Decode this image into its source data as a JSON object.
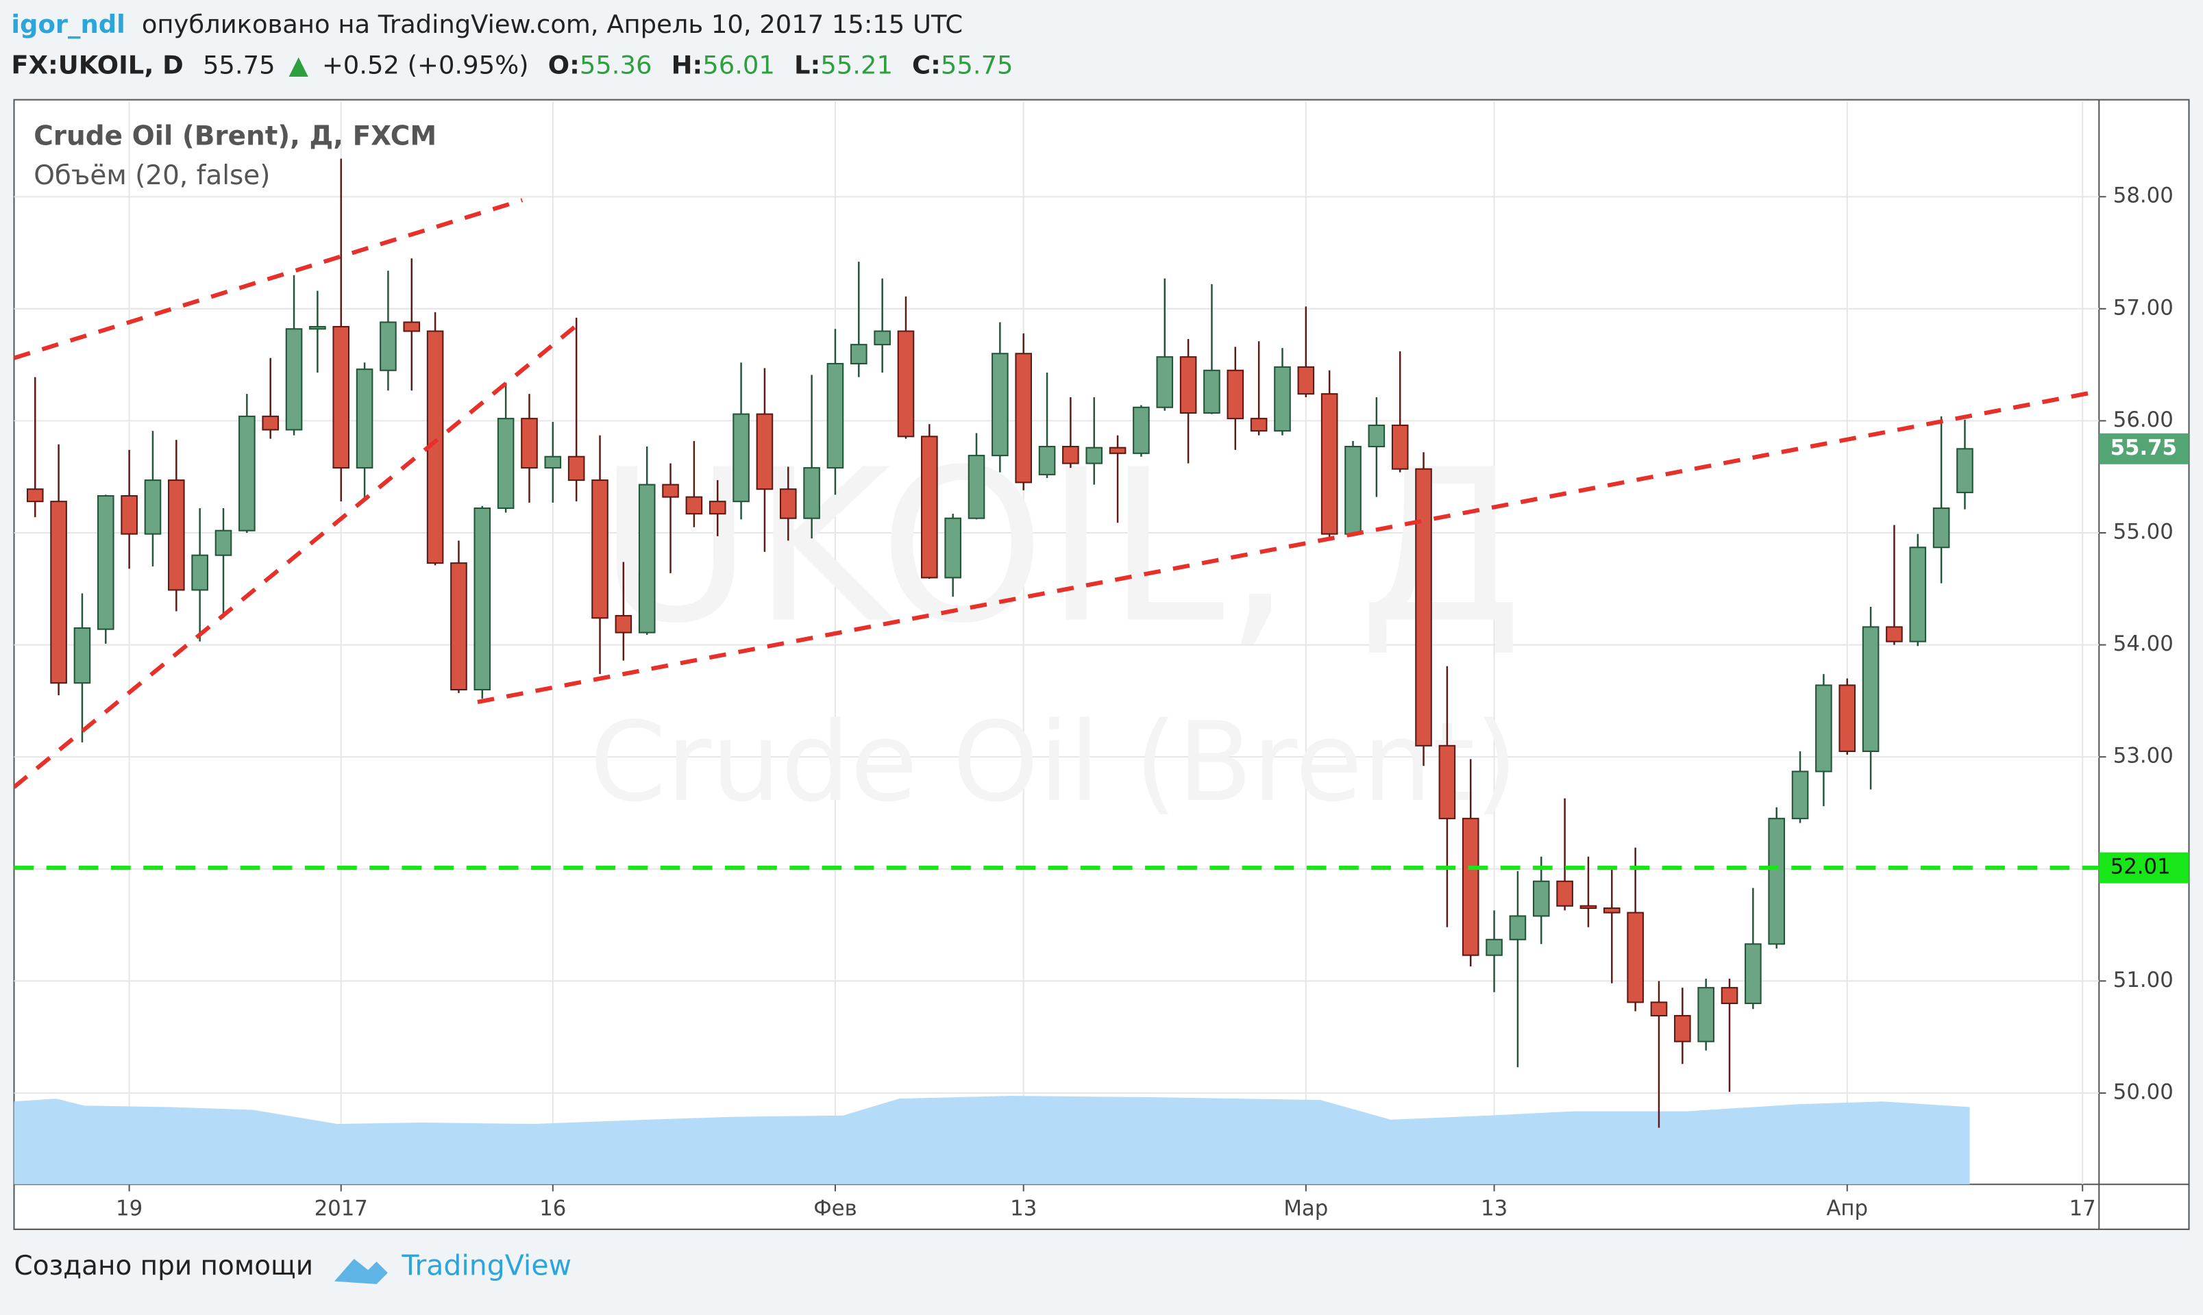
{
  "header": {
    "author": "igor_ndl",
    "published": "опубликовано на TradingView.com, Апрель 10, 2017 15:15 UTC"
  },
  "quote": {
    "symbol": "FX:UKOIL, D",
    "last": 55.75,
    "arrow": "▲",
    "change": "+0.52 (+0.95%)",
    "items": [
      {
        "label": "O:",
        "value": 55.36
      },
      {
        "label": "H:",
        "value": 56.01
      },
      {
        "label": "L:",
        "value": 55.21
      },
      {
        "label": "C:",
        "value": 55.75
      }
    ]
  },
  "chart_data": {
    "type": "candlestick",
    "legend": [
      "Crude Oil (Brent), Д, FXCM",
      "Объём (20, false)"
    ],
    "watermark": [
      "UKOIL, Д",
      "Crude Oil (Brent)"
    ],
    "up_color": "#6ba583",
    "down_color": "#d75442",
    "categories": [
      null,
      null,
      null,
      null,
      "19",
      null,
      null,
      null,
      null,
      null,
      null,
      null,
      null,
      "2017",
      null,
      null,
      null,
      null,
      null,
      null,
      null,
      null,
      "16",
      null,
      null,
      null,
      null,
      null,
      null,
      null,
      null,
      null,
      null,
      null,
      "Фев",
      null,
      null,
      null,
      null,
      null,
      null,
      null,
      "13",
      null,
      null,
      null,
      null,
      null,
      null,
      null,
      null,
      null,
      null,
      null,
      "Мар",
      null,
      null,
      null,
      null,
      null,
      null,
      null,
      "13",
      null,
      null,
      null,
      null,
      null,
      null,
      null,
      null,
      null,
      null,
      null,
      null,
      null,
      null,
      "Апр",
      null,
      null,
      null,
      null,
      null,
      null,
      null,
      null,
      null,
      "17"
    ],
    "open": [
      55.39,
      55.28,
      53.66,
      54.14,
      55.33,
      54.99,
      55.47,
      54.49,
      54.8,
      55.02,
      56.04,
      55.92,
      56.82,
      56.84,
      55.58,
      56.45,
      56.88,
      56.8,
      54.73,
      53.6,
      55.22,
      56.02,
      55.58,
      55.68,
      55.47,
      54.26,
      54.11,
      55.43,
      55.32,
      55.28,
      55.28,
      56.06,
      55.39,
      55.13,
      55.58,
      56.51,
      56.68,
      56.8,
      55.86,
      54.6,
      55.13,
      55.69,
      56.6,
      55.52,
      55.77,
      55.62,
      55.76,
      55.71,
      56.12,
      56.57,
      56.07,
      56.45,
      56.02,
      55.91,
      56.48,
      56.24,
      54.99,
      55.77,
      55.96,
      55.57,
      53.1,
      52.45,
      51.23,
      51.37,
      51.58,
      51.89,
      51.67,
      51.65,
      51.61,
      50.81,
      50.69,
      50.46,
      50.94,
      50.8,
      51.33,
      52.45,
      52.87,
      53.64,
      53.05,
      54.16,
      54.03,
      54.87,
      55.36,
      null,
      null,
      null,
      null,
      null
    ],
    "high": [
      56.39,
      55.79,
      54.46,
      55.34,
      55.74,
      55.91,
      55.83,
      55.22,
      55.22,
      56.24,
      56.56,
      57.3,
      57.16,
      58.34,
      56.52,
      57.34,
      57.45,
      56.97,
      54.93,
      55.24,
      56.34,
      56.24,
      55.99,
      56.92,
      55.87,
      54.74,
      55.77,
      55.62,
      55.82,
      55.47,
      56.52,
      56.47,
      55.59,
      56.41,
      56.82,
      57.42,
      57.27,
      57.11,
      55.97,
      55.17,
      55.89,
      56.88,
      56.78,
      56.43,
      56.21,
      56.21,
      55.87,
      56.14,
      57.27,
      56.73,
      57.22,
      56.66,
      56.71,
      56.65,
      57.02,
      56.45,
      55.82,
      56.21,
      56.62,
      55.72,
      53.81,
      52.98,
      51.63,
      51.98,
      52.11,
      52.63,
      52.11,
      52.01,
      52.19,
      51.0,
      50.94,
      51.02,
      51.02,
      51.83,
      52.55,
      53.05,
      53.74,
      53.7,
      54.34,
      55.07,
      54.99,
      56.04,
      56.01,
      null,
      null,
      null,
      null,
      null
    ],
    "low": [
      55.14,
      53.55,
      53.13,
      54.01,
      54.68,
      54.7,
      54.3,
      54.03,
      54.24,
      55.0,
      55.84,
      55.87,
      56.43,
      55.28,
      55.3,
      56.27,
      56.27,
      54.71,
      53.57,
      53.52,
      55.18,
      55.27,
      55.27,
      55.28,
      53.74,
      53.86,
      54.09,
      54.64,
      55.05,
      54.97,
      55.12,
      54.83,
      54.93,
      54.95,
      55.34,
      56.39,
      56.43,
      55.84,
      54.59,
      54.43,
      55.12,
      55.54,
      55.38,
      55.49,
      55.58,
      55.43,
      55.09,
      55.68,
      56.09,
      55.62,
      56.06,
      55.74,
      55.87,
      55.87,
      56.21,
      54.95,
      54.97,
      55.32,
      55.54,
      52.92,
      51.48,
      51.13,
      50.9,
      50.23,
      51.33,
      51.63,
      51.48,
      50.98,
      50.73,
      49.69,
      50.26,
      50.38,
      50.01,
      50.75,
      51.29,
      52.41,
      52.56,
      53.02,
      52.71,
      54.0,
      53.99,
      54.55,
      55.21,
      null,
      null,
      null,
      null,
      null
    ],
    "close": [
      55.28,
      53.66,
      54.15,
      55.33,
      54.99,
      55.47,
      54.49,
      54.8,
      55.02,
      56.04,
      55.92,
      56.82,
      56.84,
      55.58,
      56.46,
      56.88,
      56.8,
      54.73,
      53.6,
      55.22,
      56.02,
      55.58,
      55.68,
      55.47,
      54.24,
      54.11,
      55.43,
      55.32,
      55.17,
      55.17,
      56.06,
      55.39,
      55.13,
      55.58,
      56.51,
      56.68,
      56.8,
      55.86,
      54.6,
      55.13,
      55.69,
      56.6,
      55.45,
      55.77,
      55.62,
      55.76,
      55.71,
      56.12,
      56.57,
      56.07,
      56.45,
      56.02,
      55.91,
      56.48,
      56.24,
      54.99,
      55.77,
      55.96,
      55.57,
      53.1,
      52.45,
      51.23,
      51.37,
      51.58,
      51.89,
      51.67,
      51.65,
      51.61,
      50.81,
      50.69,
      50.46,
      50.94,
      50.8,
      51.33,
      52.45,
      52.87,
      53.64,
      53.05,
      54.16,
      54.03,
      54.87,
      55.22,
      55.75,
      null,
      null,
      null,
      null,
      null
    ],
    "ylim": [
      49.185,
      58.853
    ],
    "yticks": [
      {
        "value": 50,
        "label": "50.00"
      },
      {
        "value": 51,
        "label": "51.00"
      },
      {
        "value": 52,
        "label": "52.00"
      },
      {
        "value": 53,
        "label": "53.00"
      },
      {
        "value": 54,
        "label": "54.00"
      },
      {
        "value": 55,
        "label": "55.00"
      },
      {
        "value": 56,
        "label": "56.00"
      },
      {
        "value": 57,
        "label": "57.00"
      },
      {
        "value": 58,
        "label": "58.00"
      }
    ],
    "grid": true,
    "trend_lines": [
      {
        "color": "#e8302a",
        "x": [
          -0.9,
          20.7
        ],
        "y": [
          56.56,
          57.97
        ]
      },
      {
        "color": "#e8302a",
        "x": [
          -0.9,
          23.0
        ],
        "y": [
          52.73,
          56.85
        ]
      },
      {
        "color": "#e8302a",
        "x": [
          18.8,
          87.6
        ],
        "y": [
          53.49,
          56.26
        ]
      }
    ],
    "levels": [
      {
        "value": 52.01,
        "color": "#19e619"
      }
    ],
    "last_price": 55.75,
    "last_price_color": "#53a574"
  },
  "footer": {
    "text": "Создано при помощи",
    "brand": "TradingView"
  }
}
